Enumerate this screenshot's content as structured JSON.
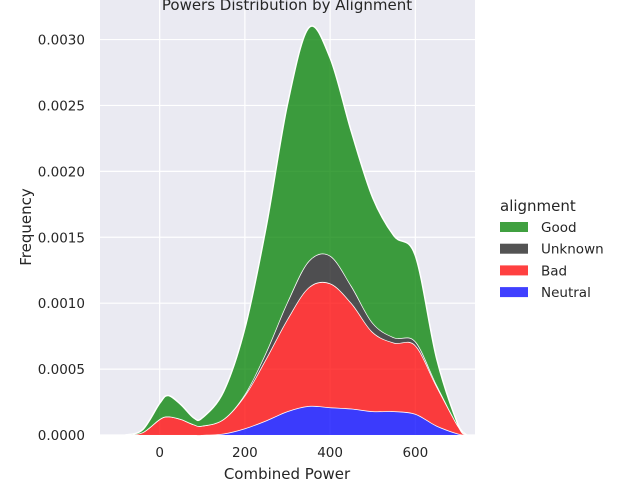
{
  "chart_data": {
    "type": "area",
    "stacked": true,
    "title": "Powers Distribution by Alignment",
    "xlabel": "Combined Power",
    "ylabel": "Frequency",
    "xlim": [
      -140,
      740
    ],
    "ylim": [
      0,
      0.0033
    ],
    "grid": true,
    "legend_placement": "right",
    "x_ticks": [
      "0",
      "200",
      "400",
      "600"
    ],
    "x_tick_values": [
      0,
      200,
      400,
      600
    ],
    "y_ticks": [
      "0.0000",
      "0.0005",
      "0.0010",
      "0.0015",
      "0.0020",
      "0.0025",
      "0.0030"
    ],
    "y_tick_values": [
      0,
      0.0005,
      0.001,
      0.0015,
      0.002,
      0.0025,
      0.003
    ],
    "legend_title": "alignment",
    "x": [
      -80,
      -40,
      0,
      20,
      50,
      80,
      100,
      150,
      200,
      250,
      300,
      350,
      400,
      450,
      500,
      550,
      600,
      650,
      700,
      720
    ],
    "series": [
      {
        "name": "Neutral",
        "color": "#0000ff",
        "values": [
          0,
          0,
          0,
          0,
          0,
          0,
          0,
          1e-05,
          5e-05,
          0.00011,
          0.00018,
          0.00022,
          0.00021,
          0.0002,
          0.00018,
          0.00018,
          0.00016,
          7e-05,
          1e-05,
          0
        ]
      },
      {
        "name": "Bad",
        "color": "#ff0000",
        "values": [
          0,
          2e-05,
          0.00012,
          0.00014,
          0.00012,
          8e-05,
          7e-05,
          0.00011,
          0.00025,
          0.00047,
          0.0007,
          0.0009,
          0.00094,
          0.0008,
          0.0006,
          0.00052,
          0.00052,
          0.0003,
          6e-05,
          0
        ]
      },
      {
        "name": "Unknown",
        "color": "#1a1a1a",
        "values": [
          0,
          0,
          0,
          0,
          0,
          0,
          0,
          0,
          1e-05,
          5e-05,
          0.00013,
          0.0002,
          0.00021,
          0.00013,
          7e-05,
          4e-05,
          3e-05,
          1e-05,
          0,
          0
        ]
      },
      {
        "name": "Good",
        "color": "#008000",
        "values": [
          0,
          2e-05,
          0.00012,
          0.00016,
          0.00011,
          5e-05,
          6e-05,
          0.00021,
          0.0005,
          0.00095,
          0.0015,
          0.00177,
          0.0015,
          0.00117,
          0.00095,
          0.00077,
          0.00065,
          0.0002,
          1e-05,
          0
        ]
      }
    ]
  },
  "legend_order": [
    "Good",
    "Unknown",
    "Bad",
    "Neutral"
  ]
}
